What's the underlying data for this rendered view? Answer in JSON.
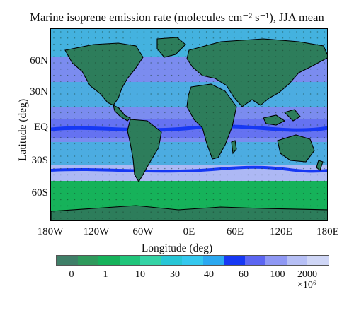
{
  "title": "Marine isoprene emission rate (molecules cm⁻² s⁻¹), JJA mean",
  "y_axis": {
    "label": "Latitude (deg)",
    "ticks": [
      "60N",
      "30N",
      "EQ",
      "30S",
      "60S"
    ]
  },
  "x_axis": {
    "label": "Longitude (deg)",
    "ticks": [
      "180W",
      "120W",
      "60W",
      "0E",
      "60E",
      "120E",
      "180E"
    ]
  },
  "colorbar": {
    "tick_labels": [
      "0",
      "1",
      "10",
      "30",
      "40",
      "60",
      "100",
      "2000"
    ],
    "scale_label": "×10⁶",
    "colors": [
      "#3f7f68",
      "#2f9a5c",
      "#16b25a",
      "#20c57a",
      "#34d3a5",
      "#27c6d6",
      "#34c8ee",
      "#2ba8f0",
      "#1638f4",
      "#5c66f2",
      "#8f98f4",
      "#b6bff5",
      "#cfd6f6"
    ]
  },
  "map_colors": {
    "land": "#2d7d5b",
    "ocean_base": "#7b8cef",
    "coastal_high": "#1638f4",
    "tropical_band": "#5c66f2",
    "subtropical_low": "#27c6d6",
    "polar_low": "#16b25a",
    "southern_ocean": "#b6bff5",
    "coastline": "#000000"
  }
}
